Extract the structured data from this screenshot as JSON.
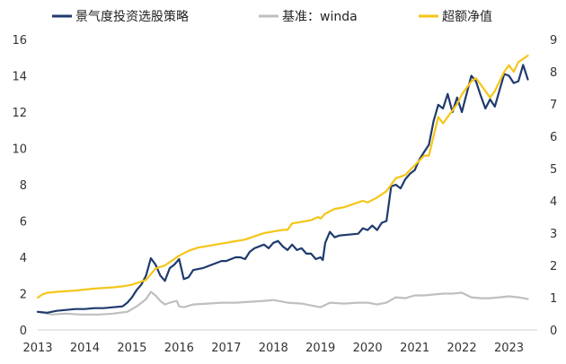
{
  "chart_data": {
    "type": "line",
    "x_ticks": [
      "2013",
      "2014",
      "2015",
      "2016",
      "2017",
      "2018",
      "2019",
      "2020",
      "2021",
      "2022",
      "2023"
    ],
    "x_range": [
      2013.0,
      2023.6
    ],
    "y_left": {
      "ticks": [
        "0",
        "2",
        "4",
        "6",
        "8",
        "10",
        "12",
        "14",
        "16"
      ],
      "range": [
        0,
        16
      ]
    },
    "y_right": {
      "ticks": [
        "0",
        "1",
        "2",
        "3",
        "4",
        "5",
        "6",
        "7",
        "8",
        "9"
      ],
      "range": [
        0,
        9
      ]
    },
    "series": [
      {
        "name": "景气度投资选股策略",
        "axis": "left",
        "color": "#1f3a6e",
        "points": [
          [
            2013.0,
            1.0
          ],
          [
            2013.2,
            0.95
          ],
          [
            2013.4,
            1.05
          ],
          [
            2013.6,
            1.1
          ],
          [
            2013.8,
            1.15
          ],
          [
            2014.0,
            1.15
          ],
          [
            2014.2,
            1.2
          ],
          [
            2014.4,
            1.2
          ],
          [
            2014.6,
            1.25
          ],
          [
            2014.8,
            1.3
          ],
          [
            2014.9,
            1.5
          ],
          [
            2015.0,
            1.8
          ],
          [
            2015.1,
            2.2
          ],
          [
            2015.2,
            2.5
          ],
          [
            2015.3,
            3.0
          ],
          [
            2015.4,
            3.95
          ],
          [
            2015.5,
            3.6
          ],
          [
            2015.6,
            3.0
          ],
          [
            2015.7,
            2.7
          ],
          [
            2015.8,
            3.4
          ],
          [
            2015.9,
            3.6
          ],
          [
            2016.0,
            3.9
          ],
          [
            2016.1,
            2.8
          ],
          [
            2016.2,
            2.9
          ],
          [
            2016.3,
            3.3
          ],
          [
            2016.5,
            3.4
          ],
          [
            2016.7,
            3.6
          ],
          [
            2016.9,
            3.8
          ],
          [
            2017.0,
            3.8
          ],
          [
            2017.2,
            4.0
          ],
          [
            2017.3,
            4.0
          ],
          [
            2017.4,
            3.9
          ],
          [
            2017.5,
            4.3
          ],
          [
            2017.6,
            4.5
          ],
          [
            2017.8,
            4.7
          ],
          [
            2017.9,
            4.5
          ],
          [
            2018.0,
            4.8
          ],
          [
            2018.1,
            4.9
          ],
          [
            2018.2,
            4.6
          ],
          [
            2018.3,
            4.4
          ],
          [
            2018.4,
            4.7
          ],
          [
            2018.5,
            4.4
          ],
          [
            2018.6,
            4.5
          ],
          [
            2018.7,
            4.2
          ],
          [
            2018.8,
            4.2
          ],
          [
            2018.9,
            3.9
          ],
          [
            2019.0,
            4.0
          ],
          [
            2019.05,
            3.85
          ],
          [
            2019.1,
            4.8
          ],
          [
            2019.2,
            5.4
          ],
          [
            2019.3,
            5.1
          ],
          [
            2019.4,
            5.2
          ],
          [
            2019.6,
            5.25
          ],
          [
            2019.8,
            5.3
          ],
          [
            2019.9,
            5.6
          ],
          [
            2020.0,
            5.5
          ],
          [
            2020.1,
            5.75
          ],
          [
            2020.2,
            5.5
          ],
          [
            2020.3,
            5.9
          ],
          [
            2020.4,
            6.0
          ],
          [
            2020.5,
            7.9
          ],
          [
            2020.6,
            8.0
          ],
          [
            2020.7,
            7.8
          ],
          [
            2020.8,
            8.3
          ],
          [
            2020.9,
            8.6
          ],
          [
            2021.0,
            8.8
          ],
          [
            2021.1,
            9.4
          ],
          [
            2021.2,
            9.8
          ],
          [
            2021.3,
            10.2
          ],
          [
            2021.4,
            11.5
          ],
          [
            2021.5,
            12.4
          ],
          [
            2021.6,
            12.2
          ],
          [
            2021.7,
            13.0
          ],
          [
            2021.8,
            12.0
          ],
          [
            2021.9,
            12.8
          ],
          [
            2022.0,
            12.0
          ],
          [
            2022.05,
            12.5
          ],
          [
            2022.2,
            14.0
          ],
          [
            2022.3,
            13.7
          ],
          [
            2022.4,
            12.9
          ],
          [
            2022.5,
            12.2
          ],
          [
            2022.6,
            12.7
          ],
          [
            2022.7,
            12.3
          ],
          [
            2022.8,
            13.2
          ],
          [
            2022.9,
            14.1
          ],
          [
            2023.0,
            14.0
          ],
          [
            2023.1,
            13.6
          ],
          [
            2023.2,
            13.7
          ],
          [
            2023.3,
            14.6
          ],
          [
            2023.4,
            13.8
          ]
        ]
      },
      {
        "name": "基准：winda",
        "axis": "left",
        "color": "#bfbfbf",
        "points": [
          [
            2013.0,
            1.0
          ],
          [
            2013.3,
            0.85
          ],
          [
            2013.6,
            0.9
          ],
          [
            2013.9,
            0.85
          ],
          [
            2014.3,
            0.85
          ],
          [
            2014.6,
            0.9
          ],
          [
            2014.9,
            1.0
          ],
          [
            2015.1,
            1.3
          ],
          [
            2015.3,
            1.7
          ],
          [
            2015.4,
            2.1
          ],
          [
            2015.5,
            1.9
          ],
          [
            2015.6,
            1.6
          ],
          [
            2015.7,
            1.4
          ],
          [
            2015.8,
            1.5
          ],
          [
            2015.95,
            1.6
          ],
          [
            2016.0,
            1.3
          ],
          [
            2016.1,
            1.25
          ],
          [
            2016.3,
            1.4
          ],
          [
            2016.6,
            1.45
          ],
          [
            2016.9,
            1.5
          ],
          [
            2017.2,
            1.5
          ],
          [
            2017.5,
            1.55
          ],
          [
            2017.8,
            1.6
          ],
          [
            2018.0,
            1.65
          ],
          [
            2018.3,
            1.5
          ],
          [
            2018.6,
            1.45
          ],
          [
            2018.9,
            1.3
          ],
          [
            2019.0,
            1.25
          ],
          [
            2019.2,
            1.5
          ],
          [
            2019.5,
            1.45
          ],
          [
            2019.8,
            1.5
          ],
          [
            2020.0,
            1.5
          ],
          [
            2020.2,
            1.4
          ],
          [
            2020.4,
            1.5
          ],
          [
            2020.6,
            1.8
          ],
          [
            2020.8,
            1.75
          ],
          [
            2021.0,
            1.9
          ],
          [
            2021.2,
            1.9
          ],
          [
            2021.4,
            1.95
          ],
          [
            2021.6,
            2.0
          ],
          [
            2021.8,
            2.0
          ],
          [
            2022.0,
            2.05
          ],
          [
            2022.2,
            1.8
          ],
          [
            2022.4,
            1.75
          ],
          [
            2022.6,
            1.75
          ],
          [
            2022.8,
            1.8
          ],
          [
            2023.0,
            1.85
          ],
          [
            2023.2,
            1.8
          ],
          [
            2023.4,
            1.7
          ]
        ]
      },
      {
        "name": "超额净值",
        "axis": "right",
        "color": "#f5c518",
        "points": [
          [
            2013.0,
            1.0
          ],
          [
            2013.1,
            1.1
          ],
          [
            2013.2,
            1.15
          ],
          [
            2013.4,
            1.18
          ],
          [
            2013.6,
            1.2
          ],
          [
            2013.8,
            1.22
          ],
          [
            2014.0,
            1.25
          ],
          [
            2014.2,
            1.28
          ],
          [
            2014.4,
            1.3
          ],
          [
            2014.6,
            1.32
          ],
          [
            2014.8,
            1.35
          ],
          [
            2015.0,
            1.4
          ],
          [
            2015.2,
            1.5
          ],
          [
            2015.3,
            1.55
          ],
          [
            2015.5,
            1.9
          ],
          [
            2015.7,
            2.0
          ],
          [
            2015.9,
            2.2
          ],
          [
            2016.0,
            2.3
          ],
          [
            2016.2,
            2.45
          ],
          [
            2016.4,
            2.55
          ],
          [
            2016.6,
            2.6
          ],
          [
            2016.8,
            2.65
          ],
          [
            2017.0,
            2.7
          ],
          [
            2017.2,
            2.75
          ],
          [
            2017.4,
            2.8
          ],
          [
            2017.6,
            2.9
          ],
          [
            2017.8,
            3.0
          ],
          [
            2018.0,
            3.05
          ],
          [
            2018.2,
            3.1
          ],
          [
            2018.3,
            3.1
          ],
          [
            2018.4,
            3.3
          ],
          [
            2018.6,
            3.35
          ],
          [
            2018.8,
            3.4
          ],
          [
            2018.95,
            3.5
          ],
          [
            2019.0,
            3.45
          ],
          [
            2019.1,
            3.6
          ],
          [
            2019.3,
            3.75
          ],
          [
            2019.5,
            3.8
          ],
          [
            2019.7,
            3.9
          ],
          [
            2019.9,
            4.0
          ],
          [
            2020.0,
            3.95
          ],
          [
            2020.2,
            4.1
          ],
          [
            2020.4,
            4.3
          ],
          [
            2020.5,
            4.5
          ],
          [
            2020.6,
            4.7
          ],
          [
            2020.8,
            4.8
          ],
          [
            2021.0,
            5.1
          ],
          [
            2021.2,
            5.4
          ],
          [
            2021.3,
            5.4
          ],
          [
            2021.4,
            6.0
          ],
          [
            2021.5,
            6.6
          ],
          [
            2021.6,
            6.4
          ],
          [
            2021.8,
            6.8
          ],
          [
            2021.9,
            7.0
          ],
          [
            2022.0,
            7.3
          ],
          [
            2022.2,
            7.7
          ],
          [
            2022.3,
            7.8
          ],
          [
            2022.4,
            7.6
          ],
          [
            2022.6,
            7.2
          ],
          [
            2022.7,
            7.4
          ],
          [
            2022.8,
            7.7
          ],
          [
            2022.9,
            8.0
          ],
          [
            2023.0,
            8.2
          ],
          [
            2023.1,
            8.0
          ],
          [
            2023.2,
            8.3
          ],
          [
            2023.3,
            8.4
          ],
          [
            2023.4,
            8.5
          ]
        ]
      }
    ]
  }
}
